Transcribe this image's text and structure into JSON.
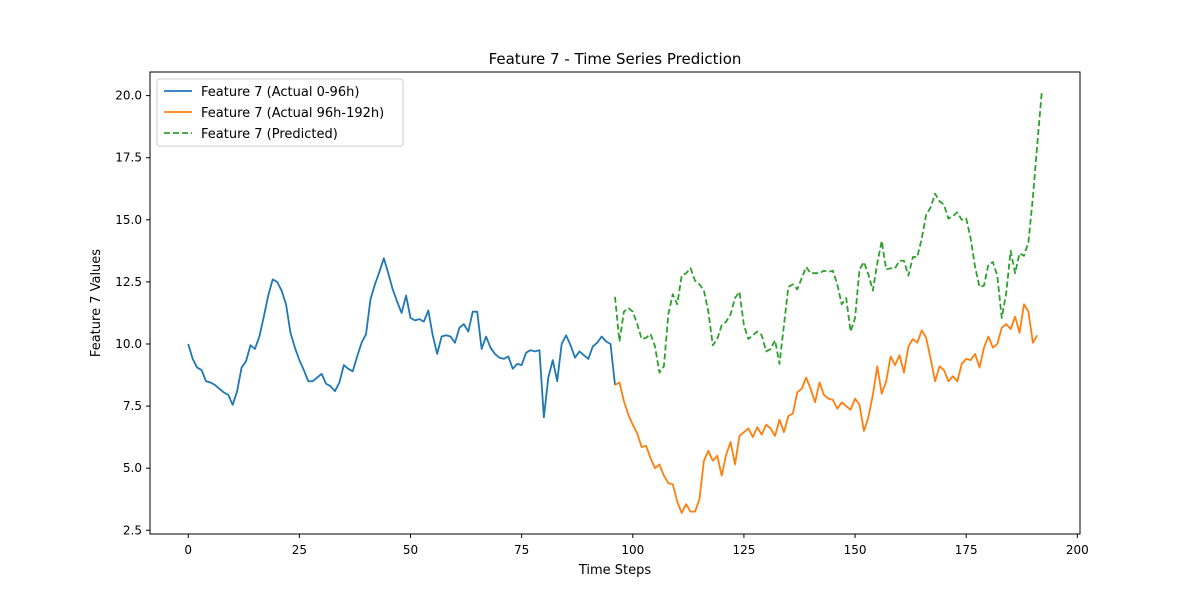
{
  "chart_data": {
    "type": "line",
    "title": "Feature 7 - Time Series Prediction",
    "xlabel": "Time Steps",
    "ylabel": "Feature 7 Values",
    "xlim": [
      -8.6,
      200.6
    ],
    "ylim": [
      2.35,
      20.95
    ],
    "xticks": [
      0,
      25,
      50,
      75,
      100,
      125,
      150,
      175,
      200
    ],
    "yticks": [
      2.5,
      5.0,
      7.5,
      10.0,
      12.5,
      15.0,
      17.5,
      20.0
    ],
    "grid": false,
    "legend_position": "upper left",
    "series": [
      {
        "name": "Feature 7 (Actual 0-96h)",
        "color": "#1f77b4",
        "style": "solid",
        "x_start": 0,
        "values": [
          10.0,
          9.4,
          9.05,
          8.95,
          8.5,
          8.45,
          8.35,
          8.2,
          8.05,
          7.95,
          7.55,
          8.1,
          9.05,
          9.3,
          9.95,
          9.8,
          10.3,
          11.1,
          11.95,
          12.6,
          12.5,
          12.15,
          11.6,
          10.45,
          9.85,
          9.35,
          8.95,
          8.5,
          8.5,
          8.65,
          8.8,
          8.4,
          8.3,
          8.1,
          8.45,
          9.15,
          9.0,
          8.9,
          9.5,
          10.05,
          10.4,
          11.8,
          12.4,
          12.9,
          13.45,
          12.85,
          12.2,
          11.7,
          11.25,
          11.95,
          11.05,
          10.95,
          11.0,
          10.9,
          11.35,
          10.35,
          9.6,
          10.3,
          10.35,
          10.3,
          10.05,
          10.65,
          10.8,
          10.5,
          11.3,
          11.3,
          9.8,
          10.3,
          9.85,
          9.6,
          9.45,
          9.4,
          9.5,
          9.0,
          9.2,
          9.15,
          9.65,
          9.75,
          9.7,
          9.75,
          7.05,
          8.65,
          9.35,
          8.5,
          10.0,
          10.35,
          9.95,
          9.45,
          9.7,
          9.55,
          9.4,
          9.9,
          10.05,
          10.3,
          10.1,
          10.0,
          8.35
        ]
      },
      {
        "name": "Feature 7 (Actual 96h-192h)",
        "color": "#ff7f0e",
        "style": "solid",
        "x_start": 96,
        "values": [
          8.35,
          8.45,
          7.7,
          7.15,
          6.75,
          6.4,
          5.85,
          5.9,
          5.4,
          5.0,
          5.15,
          4.7,
          4.4,
          4.35,
          3.65,
          3.2,
          3.55,
          3.25,
          3.25,
          3.75,
          5.3,
          5.7,
          5.3,
          5.5,
          4.7,
          5.55,
          6.05,
          5.15,
          6.3,
          6.45,
          6.6,
          6.25,
          6.65,
          6.35,
          6.75,
          6.6,
          6.3,
          6.95,
          6.45,
          7.1,
          7.2,
          8.05,
          8.2,
          8.65,
          8.2,
          7.65,
          8.45,
          7.95,
          7.8,
          7.75,
          7.4,
          7.65,
          7.5,
          7.35,
          7.8,
          7.55,
          6.5,
          7.05,
          7.95,
          9.1,
          8.0,
          8.5,
          9.5,
          9.15,
          9.55,
          8.85,
          9.9,
          10.2,
          10.05,
          10.55,
          10.25,
          9.4,
          8.5,
          9.1,
          8.95,
          8.5,
          8.7,
          8.5,
          9.2,
          9.4,
          9.35,
          9.6,
          9.05,
          9.85,
          10.3,
          9.85,
          10.0,
          10.65,
          10.8,
          10.6,
          11.1,
          10.45,
          11.6,
          11.3,
          10.05,
          10.35
        ]
      },
      {
        "name": "Feature 7 (Predicted)",
        "color": "#2ca02c",
        "style": "dashed",
        "x_start": 96,
        "values": [
          11.9,
          10.1,
          11.3,
          11.45,
          11.3,
          10.8,
          10.2,
          10.25,
          10.4,
          9.9,
          8.85,
          9.1,
          11.2,
          12.0,
          11.6,
          12.75,
          12.85,
          13.05,
          12.55,
          12.4,
          12.15,
          11.3,
          9.95,
          10.2,
          10.75,
          10.9,
          11.2,
          11.85,
          12.1,
          10.75,
          10.2,
          10.35,
          10.5,
          10.35,
          9.7,
          9.8,
          10.15,
          9.2,
          10.75,
          12.3,
          12.4,
          12.2,
          12.65,
          13.1,
          12.85,
          12.85,
          12.85,
          12.95,
          12.9,
          12.95,
          12.4,
          11.6,
          11.85,
          10.5,
          11.05,
          13.0,
          13.3,
          12.8,
          12.15,
          13.25,
          14.15,
          13.0,
          13.05,
          13.05,
          13.35,
          13.35,
          12.75,
          13.5,
          13.5,
          14.25,
          15.2,
          15.5,
          16.05,
          15.75,
          15.6,
          15.05,
          15.15,
          15.3,
          15.0,
          15.05,
          14.25,
          13.1,
          12.3,
          12.35,
          13.2,
          13.3,
          12.75,
          11.05,
          12.05,
          13.75,
          12.85,
          13.65,
          13.55,
          14.1,
          15.9,
          18.05,
          20.15
        ]
      }
    ]
  }
}
